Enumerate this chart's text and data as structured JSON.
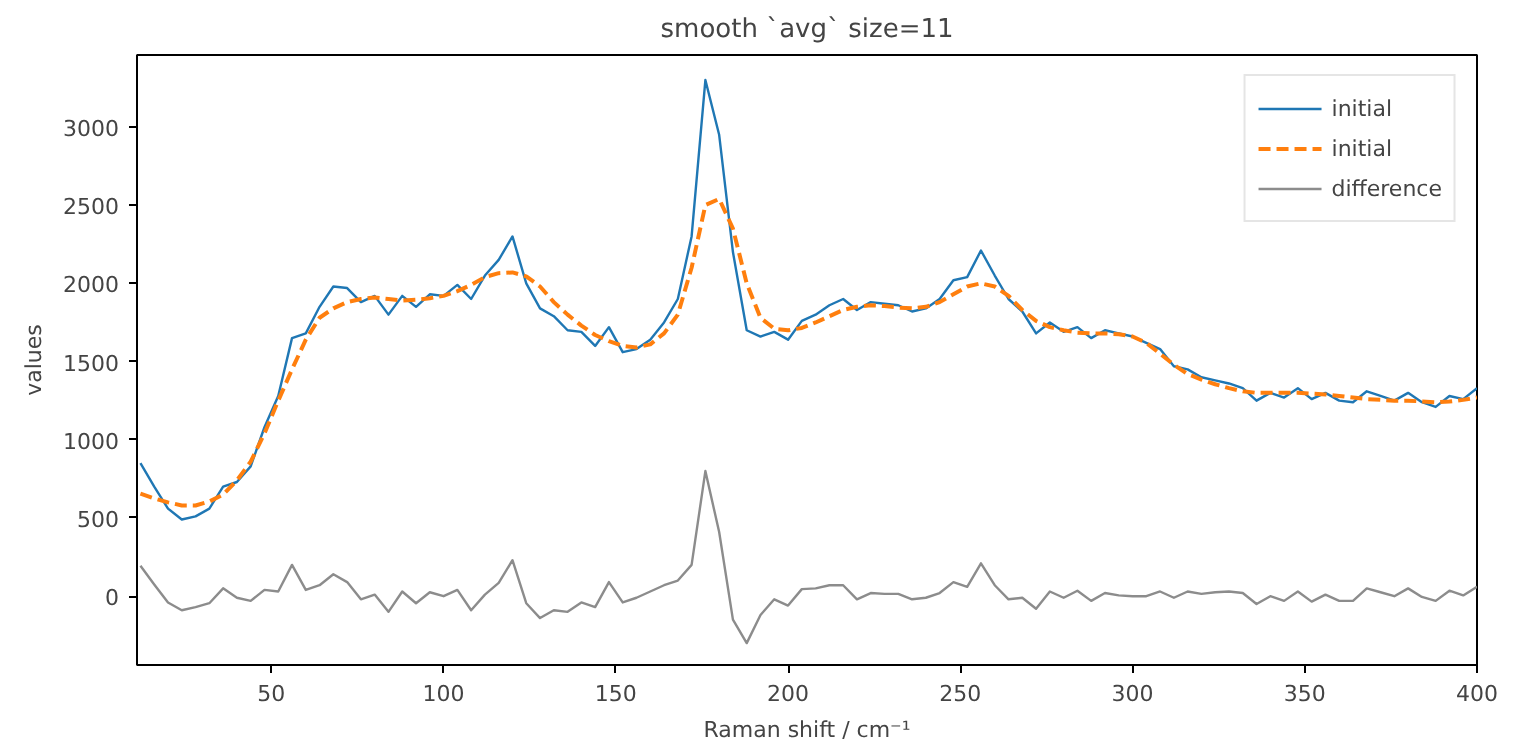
{
  "chart_data": {
    "type": "line",
    "title": "smooth `avg` size=11",
    "xlabel": "Raman shift / cm⁻¹",
    "ylabel": "values",
    "xlim": [
      11,
      400
    ],
    "ylim": [
      -440,
      3460
    ],
    "xticks": [
      50,
      100,
      150,
      200,
      250,
      300,
      350,
      400
    ],
    "yticks": [
      0,
      500,
      1000,
      1500,
      2000,
      2500,
      3000
    ],
    "grid": false,
    "legend": "top right",
    "x": [
      12,
      16,
      20,
      24,
      28,
      32,
      36,
      40,
      44,
      48,
      52,
      56,
      60,
      64,
      68,
      72,
      76,
      80,
      84,
      88,
      92,
      96,
      100,
      104,
      108,
      112,
      116,
      120,
      124,
      128,
      132,
      136,
      140,
      144,
      148,
      152,
      156,
      160,
      164,
      168,
      172,
      176,
      180,
      184,
      188,
      192,
      196,
      200,
      204,
      208,
      212,
      216,
      220,
      224,
      228,
      232,
      236,
      240,
      244,
      248,
      252,
      256,
      260,
      264,
      268,
      272,
      276,
      280,
      284,
      288,
      292,
      296,
      300,
      304,
      308,
      312,
      316,
      320,
      324,
      328,
      332,
      336,
      340,
      344,
      348,
      352,
      356,
      360,
      364,
      368,
      372,
      376,
      380,
      384,
      388,
      392,
      396,
      400
    ],
    "series": [
      {
        "name": "initial",
        "color": "#1f77b4",
        "line_style": "solid",
        "values": [
          850,
          700,
          560,
          490,
          510,
          560,
          700,
          730,
          830,
          1080,
          1280,
          1650,
          1680,
          1850,
          1980,
          1970,
          1880,
          1920,
          1800,
          1920,
          1850,
          1930,
          1920,
          1990,
          1900,
          2050,
          2150,
          2300,
          2000,
          1840,
          1790,
          1700,
          1690,
          1600,
          1720,
          1560,
          1580,
          1640,
          1750,
          1900,
          2300,
          3300,
          2950,
          2200,
          1700,
          1660,
          1690,
          1640,
          1760,
          1800,
          1860,
          1900,
          1830,
          1880,
          1870,
          1860,
          1820,
          1840,
          1900,
          2020,
          2040,
          2210,
          2050,
          1900,
          1820,
          1680,
          1750,
          1690,
          1720,
          1650,
          1700,
          1680,
          1660,
          1620,
          1580,
          1470,
          1450,
          1400,
          1380,
          1360,
          1330,
          1250,
          1300,
          1270,
          1330,
          1260,
          1300,
          1250,
          1240,
          1310,
          1280,
          1250,
          1300,
          1240,
          1210,
          1280,
          1260,
          1330
        ]
      },
      {
        "name": "initial",
        "color": "#ff7f0e",
        "line_style": "dashed",
        "values": [
          655,
          625,
          600,
          580,
          580,
          605,
          650,
          740,
          860,
          1040,
          1250,
          1450,
          1640,
          1780,
          1840,
          1880,
          1900,
          1910,
          1900,
          1890,
          1895,
          1905,
          1920,
          1950,
          1990,
          2040,
          2065,
          2070,
          2045,
          1980,
          1880,
          1800,
          1730,
          1670,
          1630,
          1600,
          1590,
          1610,
          1680,
          1800,
          2100,
          2500,
          2540,
          2350,
          2000,
          1780,
          1710,
          1700,
          1715,
          1750,
          1790,
          1830,
          1850,
          1860,
          1855,
          1845,
          1840,
          1850,
          1880,
          1930,
          1980,
          2000,
          1980,
          1920,
          1830,
          1760,
          1720,
          1700,
          1685,
          1680,
          1680,
          1675,
          1660,
          1620,
          1550,
          1480,
          1420,
          1385,
          1355,
          1330,
          1310,
          1300,
          1300,
          1300,
          1300,
          1295,
          1290,
          1280,
          1270,
          1260,
          1255,
          1250,
          1250,
          1245,
          1240,
          1245,
          1255,
          1270
        ]
      },
      {
        "name": "difference",
        "color": "#8c8c8c",
        "line_style": "solid",
        "values": [
          195,
          75,
          -40,
          -90,
          -70,
          -45,
          50,
          -10,
          -30,
          40,
          30,
          200,
          40,
          70,
          140,
          90,
          -20,
          10,
          -100,
          30,
          -45,
          25,
          0,
          40,
          -90,
          10,
          85,
          230,
          -45,
          -140,
          -90,
          -100,
          -40,
          -70,
          90,
          -40,
          -10,
          30,
          70,
          100,
          200,
          800,
          410,
          -150,
          -300,
          -120,
          -20,
          -60,
          45,
          50,
          70,
          70,
          -20,
          20,
          15,
          15,
          -20,
          -10,
          20,
          90,
          60,
          210,
          70,
          -20,
          -10,
          -80,
          30,
          -10,
          35,
          -30,
          20,
          5,
          0,
          0,
          30,
          -10,
          30,
          15,
          25,
          30,
          20,
          -50,
          0,
          -30,
          30,
          -35,
          10,
          -30,
          -30,
          50,
          25,
          0,
          50,
          -5,
          -30,
          35,
          5,
          60
        ]
      }
    ]
  }
}
